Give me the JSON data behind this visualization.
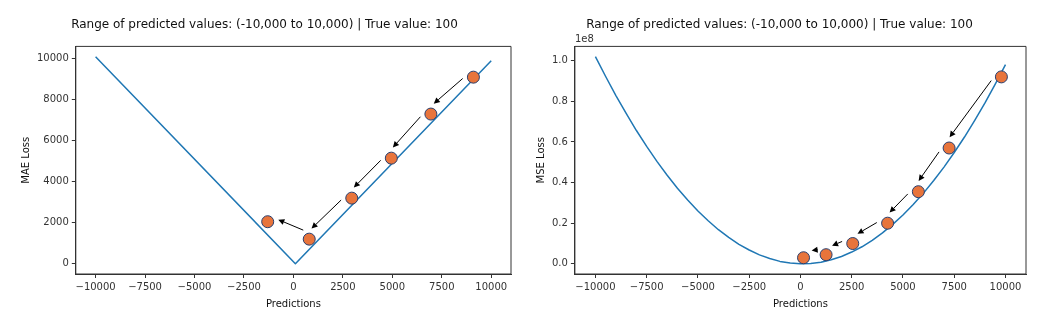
{
  "chart_data": [
    {
      "type": "line",
      "title": "Range of predicted values: (-10,000 to 10,000) | True value: 100",
      "xlabel": "Predictions",
      "ylabel": "MAE Loss",
      "xlim": [
        -11000,
        11000
      ],
      "ylim": [
        -500,
        10600
      ],
      "xticks": [
        -10000,
        -7500,
        -5000,
        -2500,
        0,
        2500,
        5000,
        7500,
        10000
      ],
      "yticks": [
        0,
        2000,
        4000,
        6000,
        8000,
        10000
      ],
      "grid": false,
      "legend": false,
      "series": [
        {
          "type": "line",
          "color": "#1f77b4",
          "marker": "none",
          "x": [
            -10000,
            100,
            10000
          ],
          "values": [
            10100,
            0,
            9900
          ]
        },
        {
          "type": "scatter",
          "color": "#e8743b",
          "marker": "circle",
          "x": [
            9100,
            6950,
            4950,
            2950,
            800,
            -1300
          ],
          "values": [
            9100,
            7300,
            5150,
            3200,
            1200,
            2050
          ]
        }
      ]
    },
    {
      "type": "line",
      "title": "Range of predicted values: (-10,000 to 10,000) | True value: 100",
      "xlabel": "Predictions",
      "ylabel": "MSE Loss",
      "annotations": [
        "1e8"
      ],
      "xlim": [
        -11000,
        11000
      ],
      "ylim": [
        -0.05,
        1.07
      ],
      "xticks": [
        -10000,
        -7500,
        -5000,
        -2500,
        0,
        2500,
        5000,
        7500,
        10000
      ],
      "yticks": [
        {
          "value": 0,
          "label": "0.0"
        },
        {
          "value": 0.2,
          "label": "0.2"
        },
        {
          "value": 0.4,
          "label": "0.4"
        },
        {
          "value": 0.6,
          "label": "0.6"
        },
        {
          "value": 0.8,
          "label": "0.8"
        },
        {
          "value": 1,
          "label": "1.0"
        }
      ],
      "grid": false,
      "legend": false,
      "series": [
        {
          "type": "line",
          "color": "#1f77b4",
          "marker": "none",
          "x": [
            -10000,
            -9500,
            -9000,
            -8500,
            -8000,
            -7500,
            -7000,
            -6500,
            -6000,
            -5500,
            -5000,
            -4500,
            -4000,
            -3500,
            -3000,
            -2500,
            -2000,
            -1500,
            -1000,
            -500,
            0,
            100,
            500,
            1000,
            1500,
            2000,
            2500,
            3000,
            3500,
            4000,
            4500,
            5000,
            5500,
            6000,
            6500,
            7000,
            7500,
            8000,
            8500,
            9000,
            9500,
            10000
          ],
          "values": [
            1.02,
            0.922,
            0.828,
            0.74,
            0.656,
            0.578,
            0.504,
            0.436,
            0.372,
            0.314,
            0.26,
            0.212,
            0.168,
            0.13,
            0.096,
            0.068,
            0.044,
            0.026,
            0.012,
            0.004,
            0,
            0,
            0.002,
            0.008,
            0.02,
            0.036,
            0.058,
            0.084,
            0.116,
            0.152,
            0.194,
            0.24,
            0.292,
            0.348,
            0.41,
            0.476,
            0.548,
            0.624,
            0.706,
            0.792,
            0.884,
            0.98
          ]
        },
        {
          "type": "scatter",
          "color": "#e8743b",
          "marker": "circle",
          "x": [
            9800,
            7250,
            5750,
            4250,
            2550,
            1250,
            150
          ],
          "values": [
            0.92,
            0.57,
            0.355,
            0.2,
            0.1,
            0.045,
            0.03
          ]
        }
      ]
    }
  ]
}
